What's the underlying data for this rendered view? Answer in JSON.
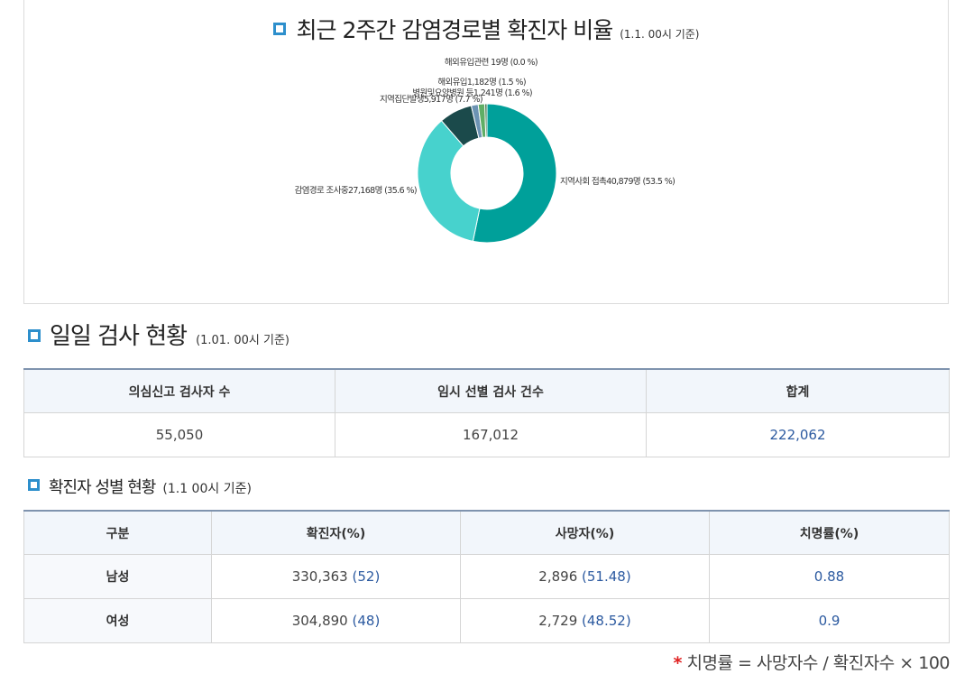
{
  "infection_chart": {
    "title": "최근 2주간 감염경로별 확진자 비율",
    "date_note": "(1.1. 00시 기준)",
    "chart_data": {
      "type": "pie",
      "title": "최근 2주간 감염경로별 확진자 비율",
      "slices": [
        {
          "label": "지역사회 접촉40,879명 (53.5 %)",
          "value": 40879,
          "percent": 53.5,
          "color": "#00a09a"
        },
        {
          "label": "감염경로 조사중27,168명 (35.6 %)",
          "value": 27168,
          "percent": 35.6,
          "color": "#47d2cd"
        },
        {
          "label": "지역집단발생5,917명 (7.7 %)",
          "value": 5917,
          "percent": 7.7,
          "color": "#1b4a4b"
        },
        {
          "label": "병원및요양병원 등1,241명 (1.6 %)",
          "value": 1241,
          "percent": 1.6,
          "color": "#6c93b3"
        },
        {
          "label": "해외유입1,182명 (1.5 %)",
          "value": 1182,
          "percent": 1.5,
          "color": "#5fae65"
        },
        {
          "label": "해외유입관련 19명 (0.0 %)",
          "value": 19,
          "percent": 0.0,
          "color": "#2d6b3e"
        }
      ]
    }
  },
  "daily_test": {
    "title": "일일 검사 현황",
    "date_note": "(1.01. 00시 기준)",
    "headers": [
      "의심신고 검사자 수",
      "임시 선별 검사 건수",
      "합계"
    ],
    "values": [
      "55,050",
      "167,012",
      "222,062"
    ]
  },
  "gender": {
    "title": "확진자 성별 현황",
    "date_note": "(1.1 00시 기준)",
    "headers": [
      "구분",
      "확진자(%)",
      "사망자(%)",
      "치명률(%)"
    ],
    "rows": [
      {
        "label": "남성",
        "confirmed": "330,363",
        "confirmed_pct": "(52)",
        "deaths": "2,896",
        "deaths_pct": "(51.48)",
        "fatality": "0.88"
      },
      {
        "label": "여성",
        "confirmed": "304,890",
        "confirmed_pct": "(48)",
        "deaths": "2,729",
        "deaths_pct": "(48.52)",
        "fatality": "0.9"
      }
    ]
  },
  "footnote": {
    "star": "*",
    "text": "치명률 = 사망자수 / 확진자수 × 100"
  }
}
